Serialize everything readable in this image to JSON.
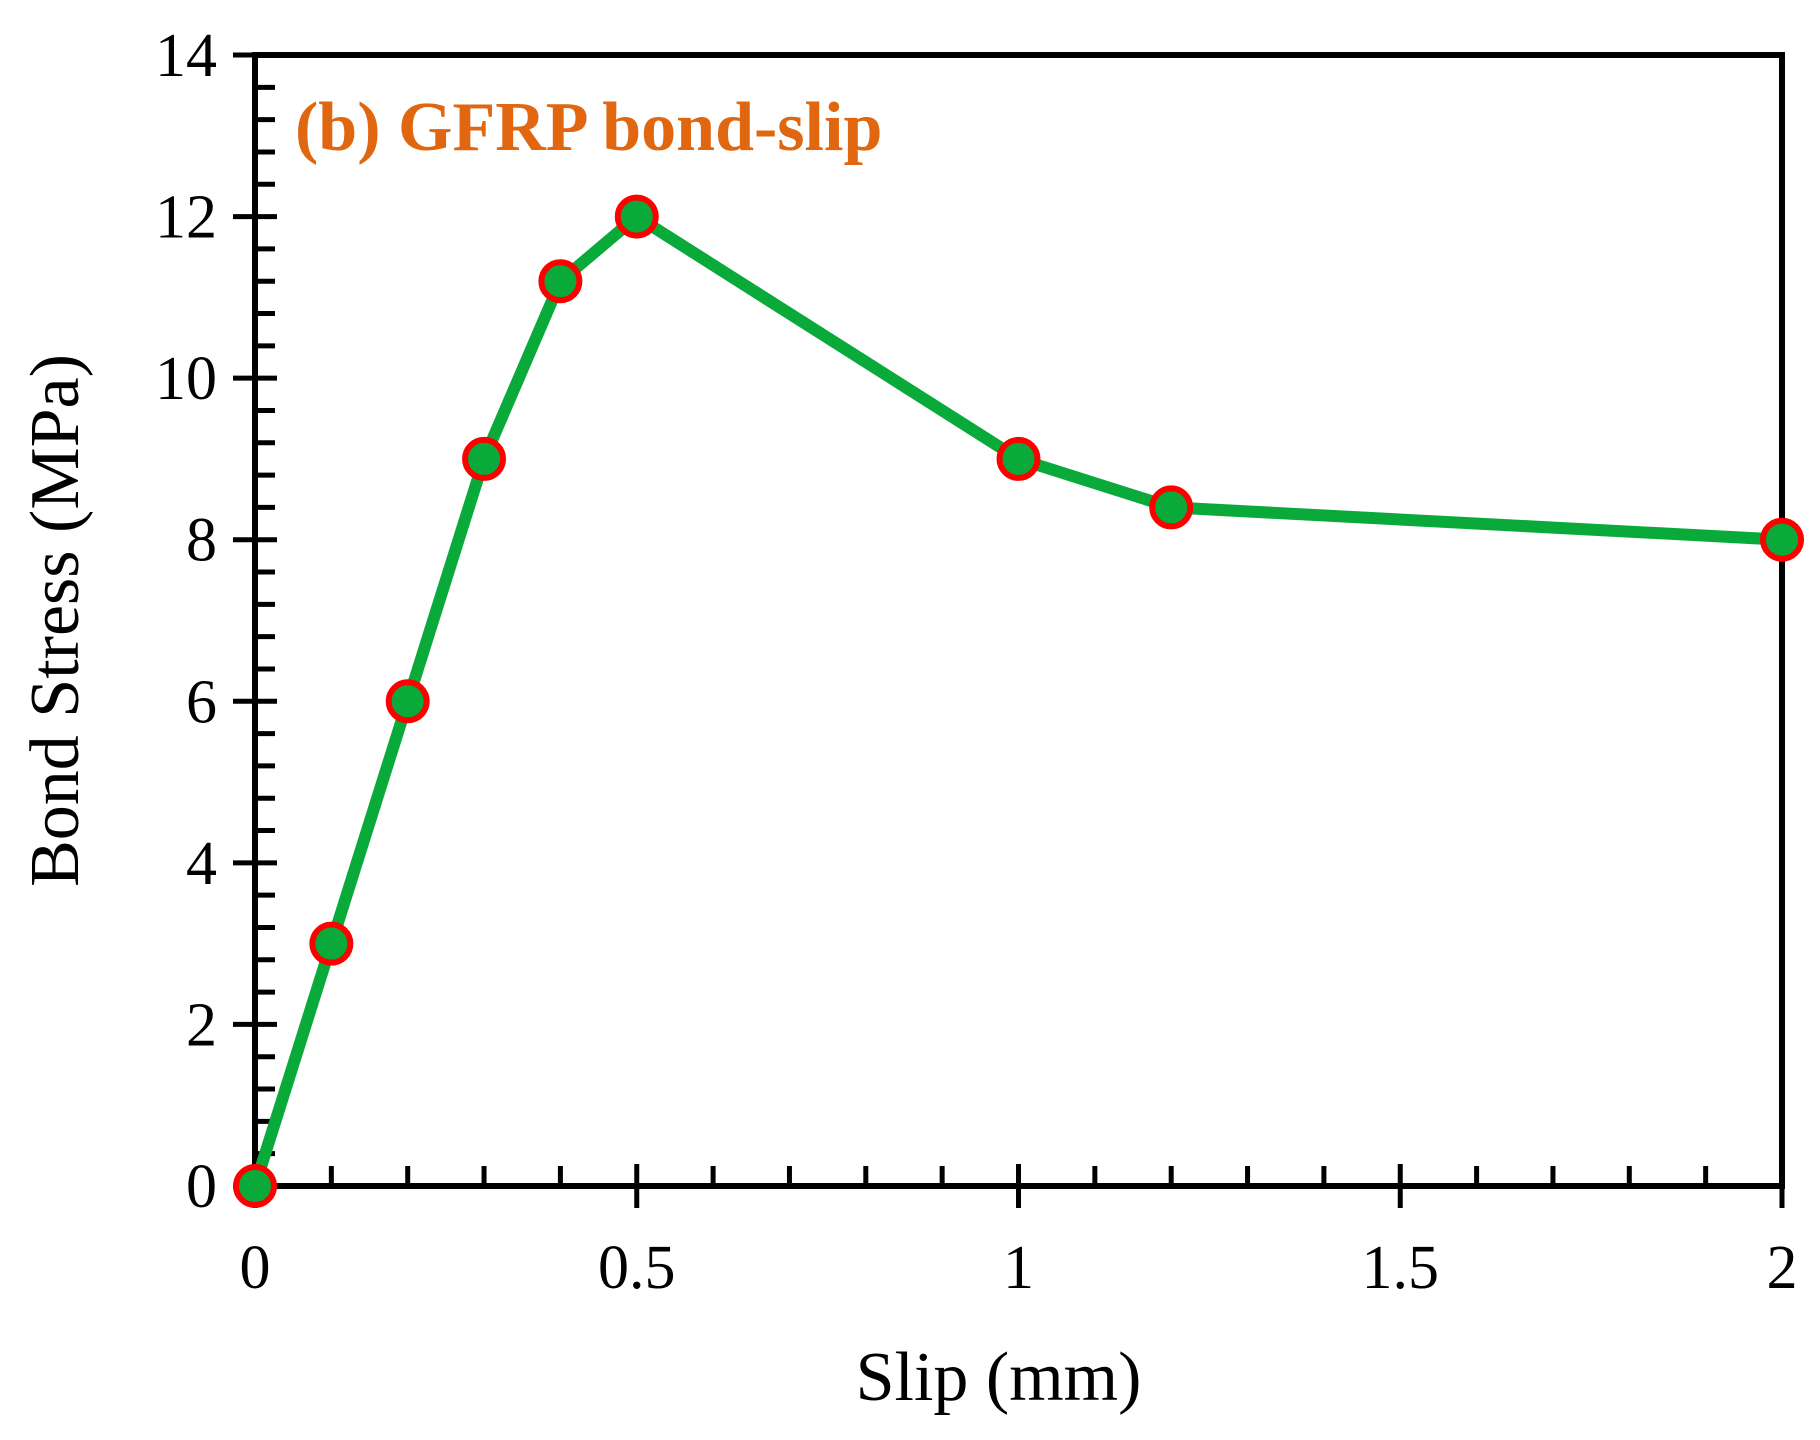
{
  "chart_data": {
    "type": "line",
    "title": "(b) GFRP bond-slip",
    "xlabel": "Slip (mm)",
    "ylabel": "Bond Stress (MPa)",
    "xlim": [
      0,
      2
    ],
    "ylim": [
      0,
      14
    ],
    "x_ticks": [
      0,
      0.5,
      1,
      1.5,
      2
    ],
    "x_tick_labels": [
      "0",
      "0.5",
      "1",
      "1.5",
      "2"
    ],
    "y_ticks": [
      0,
      2,
      4,
      6,
      8,
      10,
      12,
      14
    ],
    "y_tick_labels": [
      "0",
      "2",
      "4",
      "6",
      "8",
      "10",
      "12",
      "14"
    ],
    "x_minor_step": 0.1,
    "y_minor_step": 0.4,
    "grid": false,
    "series": [
      {
        "name": "GFRP bond-slip",
        "x": [
          0,
          0.1,
          0.2,
          0.3,
          0.4,
          0.5,
          1.0,
          1.2,
          2.0
        ],
        "y": [
          0,
          3,
          6,
          9,
          11.2,
          12,
          9,
          8.4,
          8
        ]
      }
    ],
    "colors": {
      "line": "#0aaa3a",
      "marker_fill": "#0aaa3a",
      "marker_edge": "#ff0000",
      "title": "#e0660f",
      "axis": "#000000"
    }
  }
}
